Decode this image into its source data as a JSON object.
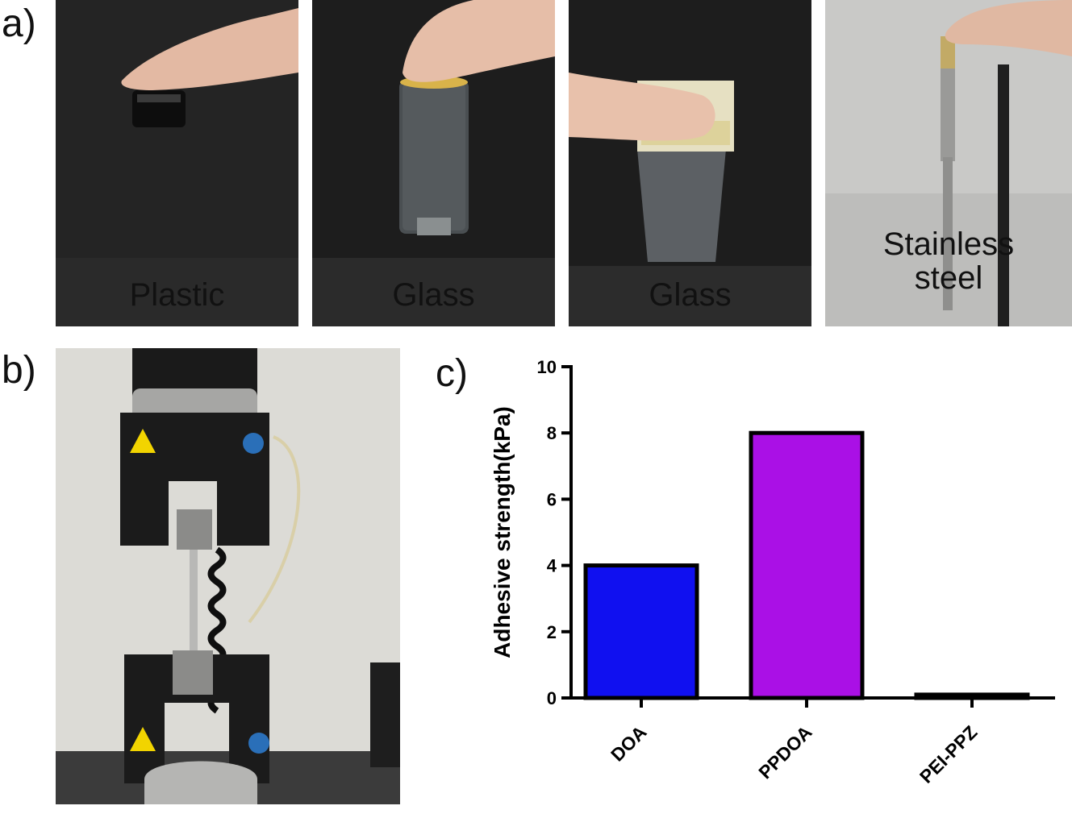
{
  "panels": {
    "a": "a)",
    "b": "b)",
    "c": "c)"
  },
  "photos": [
    {
      "label_lines": [
        "Plastic"
      ]
    },
    {
      "label_lines": [
        "Glass"
      ]
    },
    {
      "label_lines": [
        "Glass"
      ]
    },
    {
      "label_lines": [
        "Stainless",
        "steel"
      ]
    }
  ],
  "colors": {
    "doa": "#1010f0",
    "ppdoa": "#aa10e6",
    "peippz": "#111111",
    "axis": "#000000"
  },
  "chart_data": {
    "type": "bar",
    "categories": [
      "DOA",
      "PPDOA",
      "PEI-PPZ"
    ],
    "values": [
      4.0,
      8.0,
      0.1
    ],
    "ylabel": "Adhesive strength(kPa)",
    "ylim": [
      0,
      10
    ],
    "yticks": [
      0,
      2,
      4,
      6,
      8,
      10
    ],
    "grid": false
  }
}
